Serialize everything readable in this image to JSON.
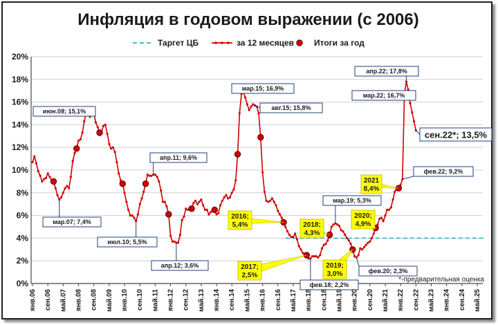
{
  "chart_data": {
    "type": "line",
    "title": "Инфляция в годовом выражении (с 2006)",
    "footnote": "*-предварительная оценка",
    "xlabel": "",
    "ylabel": "",
    "ylim": [
      0,
      20
    ],
    "y_ticks": [
      "0%",
      "2%",
      "4%",
      "6%",
      "8%",
      "10%",
      "12%",
      "14%",
      "16%",
      "18%",
      "20%"
    ],
    "x_ticks": [
      "янв.06",
      "сен.06",
      "май.07",
      "янв.08",
      "сен.08",
      "май.09",
      "янв.10",
      "сен.10",
      "май.11",
      "янв.12",
      "сен.12",
      "май.13",
      "янв.14",
      "сен.14",
      "май.15",
      "янв.16",
      "сен.16",
      "май.17",
      "янв.18",
      "сен.18",
      "май.19",
      "янв.20",
      "сен.20",
      "май.21",
      "янв.22",
      "сен.22",
      "май.23",
      "янв.24",
      "сен.24",
      "май.25"
    ],
    "grid": "horizontal",
    "legend_position": "top",
    "legend": [
      {
        "label": "Таргет ЦБ",
        "style": "dashed",
        "color": "#2fb0c8"
      },
      {
        "label": "за 12 месяцев",
        "style": "line-dots",
        "color": "#d00000"
      },
      {
        "label": "Итоги за год",
        "style": "circle",
        "color": "#d00000"
      }
    ],
    "target": {
      "name": "Таргет ЦБ",
      "value": 4,
      "from": "2017-01",
      "to": "2025-09",
      "color": "#2fb0c8"
    },
    "monthly": {
      "name": "за 12 месяцев",
      "color": "#d00000",
      "start": "2006-01",
      "values": [
        10.7,
        11.2,
        10.6,
        9.9,
        9.5,
        9.0,
        9.2,
        9.3,
        9.7,
        9.4,
        9.1,
        9.0,
        8.4,
        7.8,
        7.4,
        7.6,
        8.0,
        8.4,
        8.6,
        8.4,
        9.4,
        10.8,
        11.5,
        11.9,
        12.6,
        12.7,
        13.3,
        14.3,
        15.1,
        15.1,
        14.7,
        15.0,
        15.0,
        14.2,
        13.8,
        13.3,
        13.4,
        13.9,
        14.0,
        13.2,
        12.3,
        11.9,
        12.0,
        11.6,
        10.7,
        9.7,
        9.1,
        8.8,
        8.0,
        7.2,
        6.5,
        6.0,
        6.0,
        5.8,
        5.5,
        6.1,
        7.0,
        7.5,
        8.1,
        8.8,
        9.6,
        9.5,
        9.5,
        9.6,
        9.6,
        9.4,
        9.0,
        8.2,
        7.2,
        7.2,
        6.8,
        6.1,
        4.2,
        3.7,
        3.7,
        3.6,
        3.6,
        4.3,
        5.6,
        5.9,
        6.6,
        6.5,
        6.5,
        6.6,
        7.1,
        7.3,
        7.0,
        7.2,
        7.4,
        6.9,
        6.5,
        6.5,
        6.1,
        6.3,
        6.5,
        6.5,
        6.1,
        6.2,
        6.9,
        7.3,
        7.6,
        7.8,
        7.5,
        7.6,
        8.0,
        8.3,
        9.1,
        11.4,
        15.0,
        16.7,
        16.9,
        16.4,
        15.8,
        15.3,
        15.6,
        15.8,
        15.7,
        15.6,
        15.0,
        12.9,
        9.8,
        8.1,
        7.3,
        7.2,
        7.3,
        7.5,
        7.2,
        6.9,
        6.4,
        6.1,
        5.8,
        5.4,
        5.0,
        4.6,
        4.3,
        4.1,
        4.1,
        4.4,
        3.9,
        3.3,
        3.0,
        2.7,
        2.5,
        2.5,
        2.2,
        2.2,
        2.4,
        2.4,
        2.4,
        2.3,
        2.5,
        3.1,
        3.4,
        3.5,
        3.8,
        4.3,
        5.0,
        5.2,
        5.3,
        5.2,
        5.1,
        4.7,
        4.6,
        4.3,
        4.0,
        3.8,
        3.5,
        3.0,
        2.4,
        2.3,
        2.5,
        3.1,
        3.0,
        3.2,
        3.4,
        3.6,
        3.7,
        4.0,
        4.4,
        4.9,
        5.2,
        5.7,
        5.8,
        5.5,
        6.0,
        6.5,
        6.5,
        6.7,
        7.4,
        8.1,
        8.4,
        8.4,
        8.7,
        9.2,
        16.7,
        17.8,
        17.1,
        15.9,
        15.1,
        14.3,
        13.5
      ]
    },
    "annual": {
      "name": "Итоги за год",
      "color": "#d00000",
      "points": [
        {
          "x": "2006-12",
          "y": 9.0
        },
        {
          "x": "2007-12",
          "y": 11.9
        },
        {
          "x": "2008-12",
          "y": 13.3
        },
        {
          "x": "2009-12",
          "y": 8.8
        },
        {
          "x": "2010-12",
          "y": 8.8
        },
        {
          "x": "2011-12",
          "y": 6.1
        },
        {
          "x": "2012-12",
          "y": 6.6
        },
        {
          "x": "2013-12",
          "y": 6.5
        },
        {
          "x": "2014-12",
          "y": 11.4
        },
        {
          "x": "2015-12",
          "y": 12.9
        },
        {
          "x": "2016-12",
          "y": 5.4
        },
        {
          "x": "2017-12",
          "y": 2.5
        },
        {
          "x": "2018-12",
          "y": 4.3
        },
        {
          "x": "2019-12",
          "y": 3.0
        },
        {
          "x": "2020-12",
          "y": 4.9
        },
        {
          "x": "2021-12",
          "y": 8.4
        }
      ]
    },
    "annotations": [
      {
        "text": "июн.08; 15,1%",
        "x": "2008-06",
        "y": 15.1,
        "style": "box"
      },
      {
        "text": "мар.07; 7,4%",
        "x": "2007-03",
        "y": 7.4,
        "style": "box"
      },
      {
        "text": "июл.10; 5,5%",
        "x": "2010-07",
        "y": 5.5,
        "style": "box"
      },
      {
        "text": "апр.11; 9,6%",
        "x": "2011-04",
        "y": 9.6,
        "style": "box"
      },
      {
        "text": "апр.12; 3,6%",
        "x": "2012-04",
        "y": 3.6,
        "style": "box"
      },
      {
        "text": "мар.15; 16,9%",
        "x": "2015-03",
        "y": 16.9,
        "style": "box"
      },
      {
        "text": "авг.15; 15,8%",
        "x": "2015-08",
        "y": 15.8,
        "style": "box"
      },
      {
        "text": "фев.18; 2,2%",
        "x": "2018-02",
        "y": 2.2,
        "style": "box"
      },
      {
        "text": "мар.19; 5,3%",
        "x": "2019-03",
        "y": 5.3,
        "style": "box"
      },
      {
        "text": "фев.20; 2,3%",
        "x": "2020-02",
        "y": 2.3,
        "style": "box"
      },
      {
        "text": "фев.22; 9,2%",
        "x": "2022-02",
        "y": 9.2,
        "style": "box"
      },
      {
        "text": "мар.22; 16,7%",
        "x": "2022-03",
        "y": 16.7,
        "style": "box"
      },
      {
        "text": "апр.22; 17,8%",
        "x": "2022-04",
        "y": 17.8,
        "style": "box"
      },
      {
        "text": "сен.22*; 13,5%",
        "x": "2022-09",
        "y": 13.5,
        "style": "box-big"
      },
      {
        "text": [
          "2016;",
          "5,4%"
        ],
        "x": "2016-12",
        "y": 5.4,
        "style": "yellow"
      },
      {
        "text": [
          "2017;",
          "2,5%"
        ],
        "x": "2017-12",
        "y": 2.5,
        "style": "yellow"
      },
      {
        "text": [
          "2018;",
          "4,3%"
        ],
        "x": "2018-12",
        "y": 4.3,
        "style": "yellow"
      },
      {
        "text": [
          "2019;",
          "3,0%"
        ],
        "x": "2019-12",
        "y": 3.0,
        "style": "yellow"
      },
      {
        "text": [
          "2020;",
          "4,9%"
        ],
        "x": "2020-12",
        "y": 4.9,
        "style": "yellow"
      },
      {
        "text": [
          "2021",
          "8,4%"
        ],
        "x": "2021-12",
        "y": 8.4,
        "style": "yellow"
      }
    ]
  }
}
